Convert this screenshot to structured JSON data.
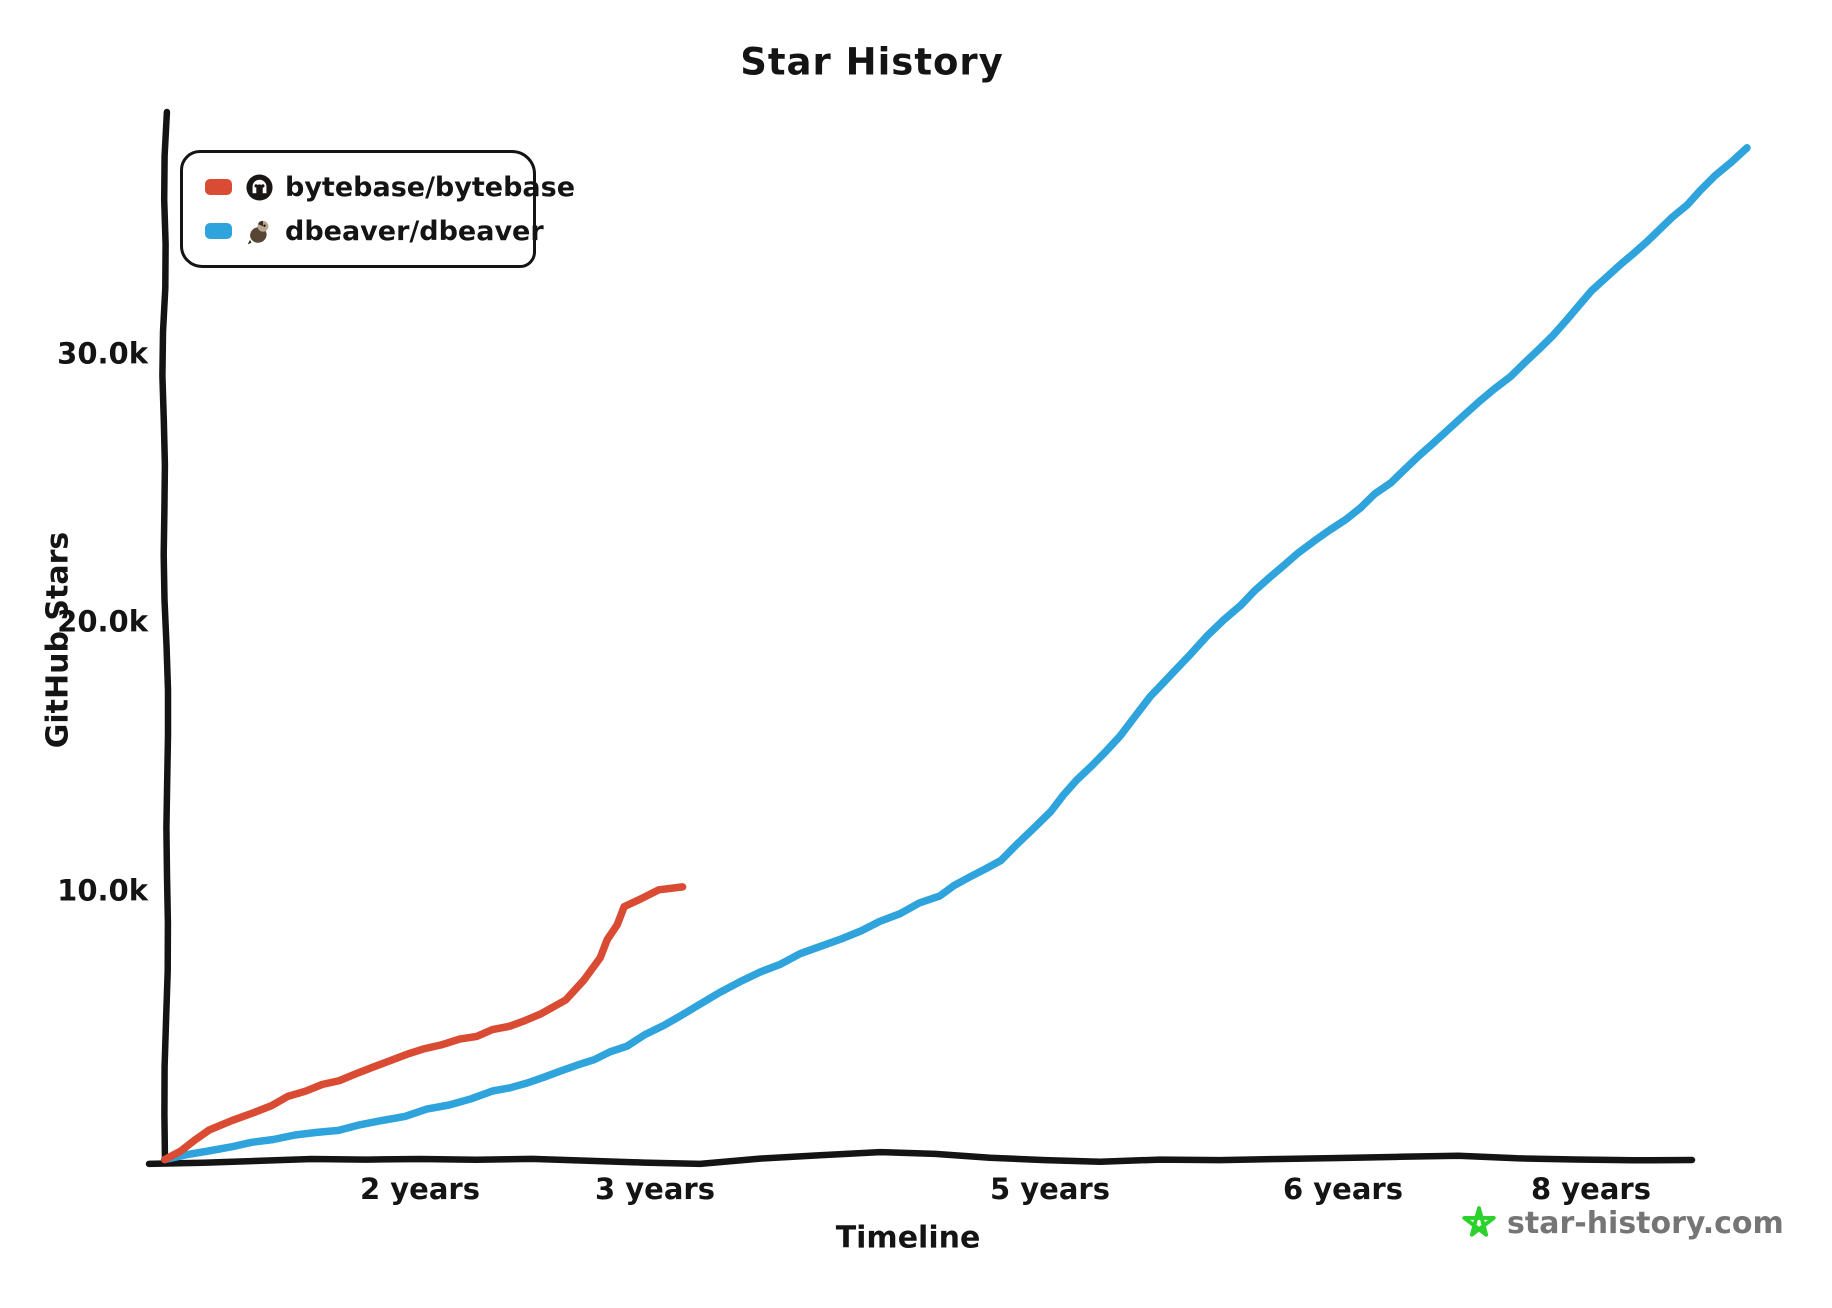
{
  "title": "Star History",
  "legend": {
    "items": [
      {
        "label": "bytebase/bytebase",
        "color": "#d94b32",
        "logo": "bytebase-logo"
      },
      {
        "label": "dbeaver/dbeaver",
        "color": "#2ea3dc",
        "logo": "dbeaver-logo"
      }
    ]
  },
  "axes": {
    "y_label": "GitHub Stars",
    "x_label": "Timeline",
    "y_ticks": [
      {
        "label": "30.0k",
        "value": 30000
      },
      {
        "label": "20.0k",
        "value": 20000
      },
      {
        "label": "10.0k",
        "value": 10000
      }
    ],
    "x_ticks": [
      {
        "label": "2 years",
        "value": 2
      },
      {
        "label": "3 years",
        "value": 3
      },
      {
        "label": "5 years",
        "value": 5
      },
      {
        "label": "6 years",
        "value": 6
      },
      {
        "label": "8 years",
        "value": 8
      }
    ]
  },
  "watermark": {
    "text": "star-history.com",
    "star_color": "#2bd22b",
    "text_color": "#757575"
  },
  "colors": {
    "axis": "#141414",
    "series_red": "#d94b32",
    "series_blue": "#2ea3dc",
    "watermark_green": "#2bd22b",
    "watermark_gray": "#757575"
  },
  "chart_data": {
    "type": "line",
    "title": "Star History",
    "xlabel": "Timeline",
    "ylabel": "GitHub Stars",
    "x_unit": "years since repo creation",
    "y_unit": "GitHub stars",
    "xlim_years": [
      0,
      8.8
    ],
    "ylim": [
      0,
      38500
    ],
    "grid": false,
    "legend_position": "top-left",
    "series": [
      {
        "name": "bytebase/bytebase",
        "color": "#d94b32",
        "points_years_stars": [
          [
            0,
            0
          ],
          [
            0.35,
            1080
          ],
          [
            0.7,
            1790
          ],
          [
            1.1,
            2600
          ],
          [
            1.5,
            3170
          ],
          [
            1.9,
            3980
          ],
          [
            2.17,
            4470
          ],
          [
            2.38,
            4990
          ],
          [
            2.51,
            5470
          ],
          [
            2.62,
            5960
          ],
          [
            2.7,
            6670
          ],
          [
            2.77,
            7520
          ],
          [
            2.8,
            8190
          ],
          [
            2.84,
            8750
          ],
          [
            2.87,
            9420
          ],
          [
            2.94,
            9760
          ],
          [
            3.02,
            10020
          ],
          [
            3.14,
            10170
          ]
        ]
      },
      {
        "name": "dbeaver/dbeaver",
        "color": "#2ea3dc",
        "points_years_stars": [
          [
            0,
            0
          ],
          [
            0.51,
            520
          ],
          [
            1.02,
            890
          ],
          [
            1.53,
            1270
          ],
          [
            2.03,
            1860
          ],
          [
            2.31,
            2530
          ],
          [
            2.6,
            3280
          ],
          [
            2.88,
            4250
          ],
          [
            3.23,
            5850
          ],
          [
            3.53,
            7000
          ],
          [
            3.84,
            7970
          ],
          [
            4.14,
            8860
          ],
          [
            4.44,
            9870
          ],
          [
            4.75,
            11170
          ],
          [
            5.0,
            13000
          ],
          [
            5.14,
            14700
          ],
          [
            5.24,
            15800
          ],
          [
            5.34,
            17300
          ],
          [
            5.48,
            18900
          ],
          [
            5.65,
            20700
          ],
          [
            5.85,
            22600
          ],
          [
            6.14,
            24300
          ],
          [
            6.62,
            26200
          ],
          [
            7.1,
            28200
          ],
          [
            7.59,
            30200
          ],
          [
            8.0,
            32400
          ],
          [
            8.15,
            33400
          ],
          [
            8.35,
            34600
          ],
          [
            8.56,
            36100
          ],
          [
            8.8,
            37700
          ]
        ]
      }
    ]
  }
}
